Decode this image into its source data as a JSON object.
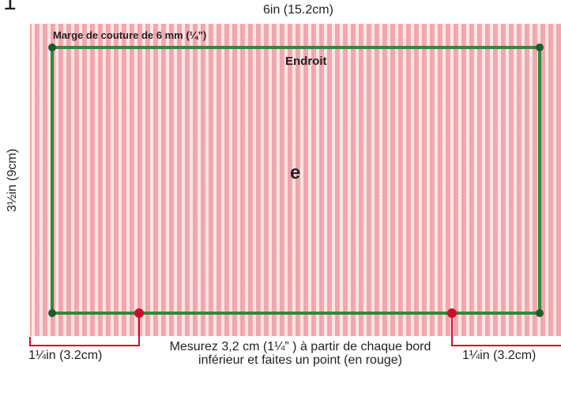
{
  "step_number": "1",
  "dimensions": {
    "width": "6in (15.2cm)",
    "height": "3½in (9cm)"
  },
  "seam_allowance": "Marge de couture de 6 mm (¼”)",
  "side_label": "Endroit",
  "center_letter": "e",
  "measure_left": "1¼in (3.2cm)",
  "measure_right": "1¼in (3.2cm)",
  "instruction": "Mesurez 3,2 cm (1¼” ) à partir de chaque bord inférieur et faites un point (en rouge)",
  "colors": {
    "fabric_background": "#f2a9b0",
    "fabric_stripe": "#fbe6e5",
    "seam_line": "#2e8b3a",
    "corner_dot": "#1f5c2a",
    "mark_red": "#c8102e"
  }
}
